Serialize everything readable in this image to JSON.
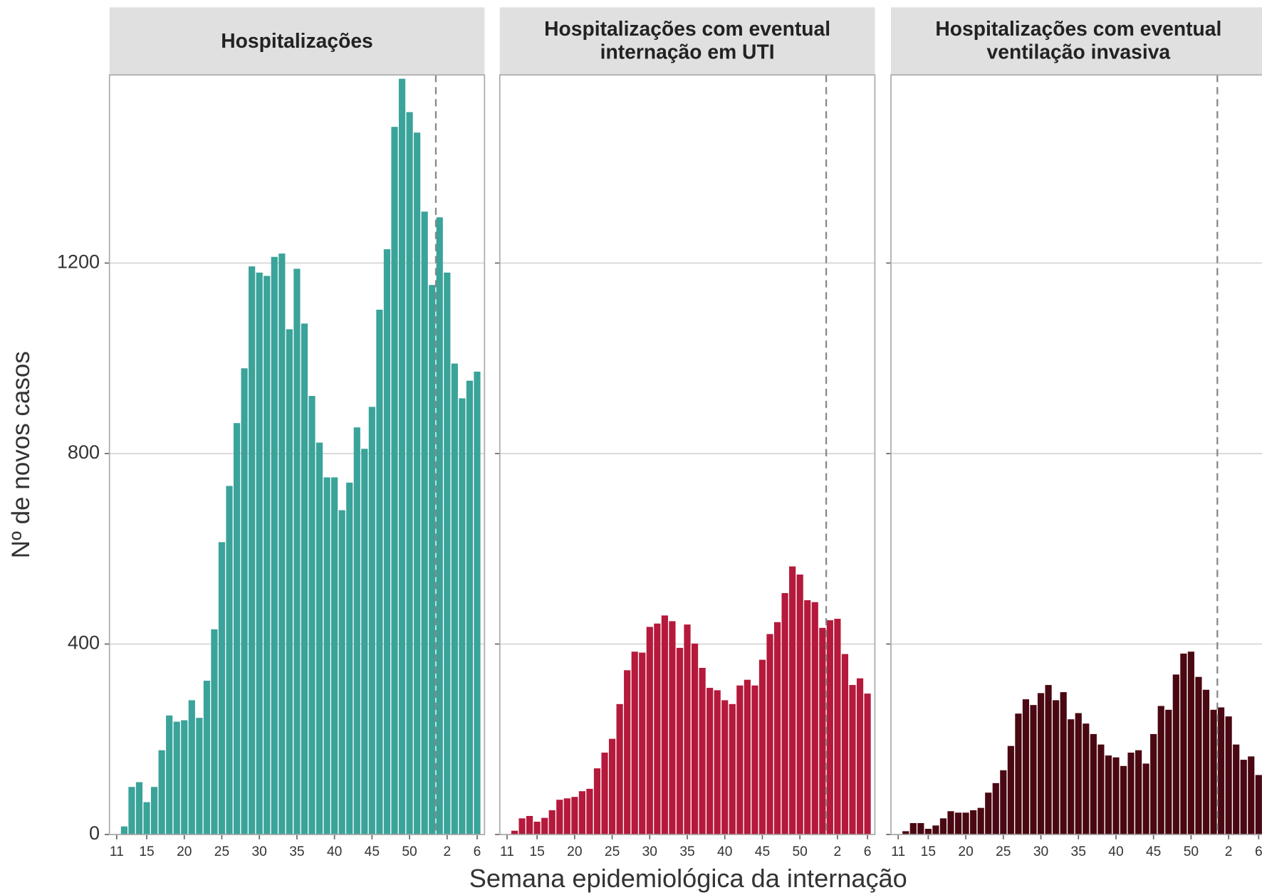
{
  "y_label": "Nº de novos casos",
  "x_label": "Semana epidemiológica da internação",
  "chart_data": [
    {
      "type": "bar",
      "title": "Hospitalizações",
      "color": "#3aa39a",
      "categories": [
        "11",
        null,
        null,
        null,
        "15",
        null,
        null,
        null,
        null,
        "20",
        null,
        null,
        null,
        null,
        "25",
        null,
        null,
        null,
        null,
        "30",
        null,
        null,
        null,
        null,
        "35",
        null,
        null,
        null,
        null,
        "40",
        null,
        null,
        null,
        null,
        "45",
        null,
        null,
        null,
        null,
        "50",
        null,
        null,
        null,
        null,
        "2",
        null,
        null,
        null,
        "6"
      ],
      "values": [
        0,
        17,
        100,
        110,
        68,
        100,
        177,
        250,
        237,
        240,
        282,
        245,
        323,
        431,
        614,
        732,
        864,
        979,
        1193,
        1180,
        1173,
        1213,
        1220,
        1061,
        1188,
        1073,
        921,
        823,
        750,
        750,
        681,
        739,
        855,
        810,
        898,
        1102,
        1229,
        1486,
        1587,
        1517,
        1474,
        1308,
        1154,
        1296,
        1180,
        989,
        916,
        953,
        972
      ],
      "ylim": [
        0,
        1595
      ],
      "yticks": [
        0,
        400,
        800,
        1200
      ],
      "grid": true
    },
    {
      "type": "bar",
      "title": "Hospitalizações com eventual internação em UTI",
      "color": "#b5193b",
      "categories": [
        "11",
        null,
        null,
        null,
        "15",
        null,
        null,
        null,
        null,
        "20",
        null,
        null,
        null,
        null,
        "25",
        null,
        null,
        null,
        null,
        "30",
        null,
        null,
        null,
        null,
        "35",
        null,
        null,
        null,
        null,
        "40",
        null,
        null,
        null,
        null,
        "45",
        null,
        null,
        null,
        null,
        "50",
        null,
        null,
        null,
        null,
        "2",
        null,
        null,
        null,
        "6"
      ],
      "values": [
        0,
        8,
        34,
        39,
        27,
        35,
        51,
        73,
        76,
        79,
        91,
        96,
        139,
        172,
        201,
        274,
        345,
        384,
        382,
        436,
        443,
        460,
        448,
        392,
        441,
        401,
        350,
        308,
        303,
        282,
        274,
        313,
        325,
        313,
        367,
        421,
        446,
        507,
        563,
        546,
        492,
        488,
        434,
        450,
        453,
        379,
        314,
        328,
        296
      ],
      "ylim": [
        0,
        1595
      ],
      "yticks": [
        0,
        400,
        800,
        1200
      ],
      "grid": true
    },
    {
      "type": "bar",
      "title": "Hospitalizações com eventual ventilação invasiva",
      "color": "#4a0812",
      "categories": [
        "11",
        null,
        null,
        null,
        "15",
        null,
        null,
        null,
        null,
        "20",
        null,
        null,
        null,
        null,
        "25",
        null,
        null,
        null,
        null,
        "30",
        null,
        null,
        null,
        null,
        "35",
        null,
        null,
        null,
        null,
        "40",
        null,
        null,
        null,
        null,
        "45",
        null,
        null,
        null,
        null,
        "50",
        null,
        null,
        null,
        null,
        "2",
        null,
        null,
        null,
        "6"
      ],
      "values": [
        0,
        7,
        24,
        24,
        12,
        19,
        34,
        49,
        46,
        46,
        51,
        56,
        88,
        108,
        135,
        186,
        254,
        284,
        272,
        297,
        314,
        282,
        299,
        242,
        255,
        233,
        211,
        189,
        166,
        162,
        144,
        172,
        177,
        149,
        211,
        270,
        262,
        336,
        380,
        384,
        331,
        304,
        262,
        267,
        248,
        189,
        157,
        164,
        125
      ],
      "ylim": [
        0,
        1595
      ],
      "yticks": [
        0,
        400,
        800,
        1200
      ],
      "grid": true
    }
  ]
}
